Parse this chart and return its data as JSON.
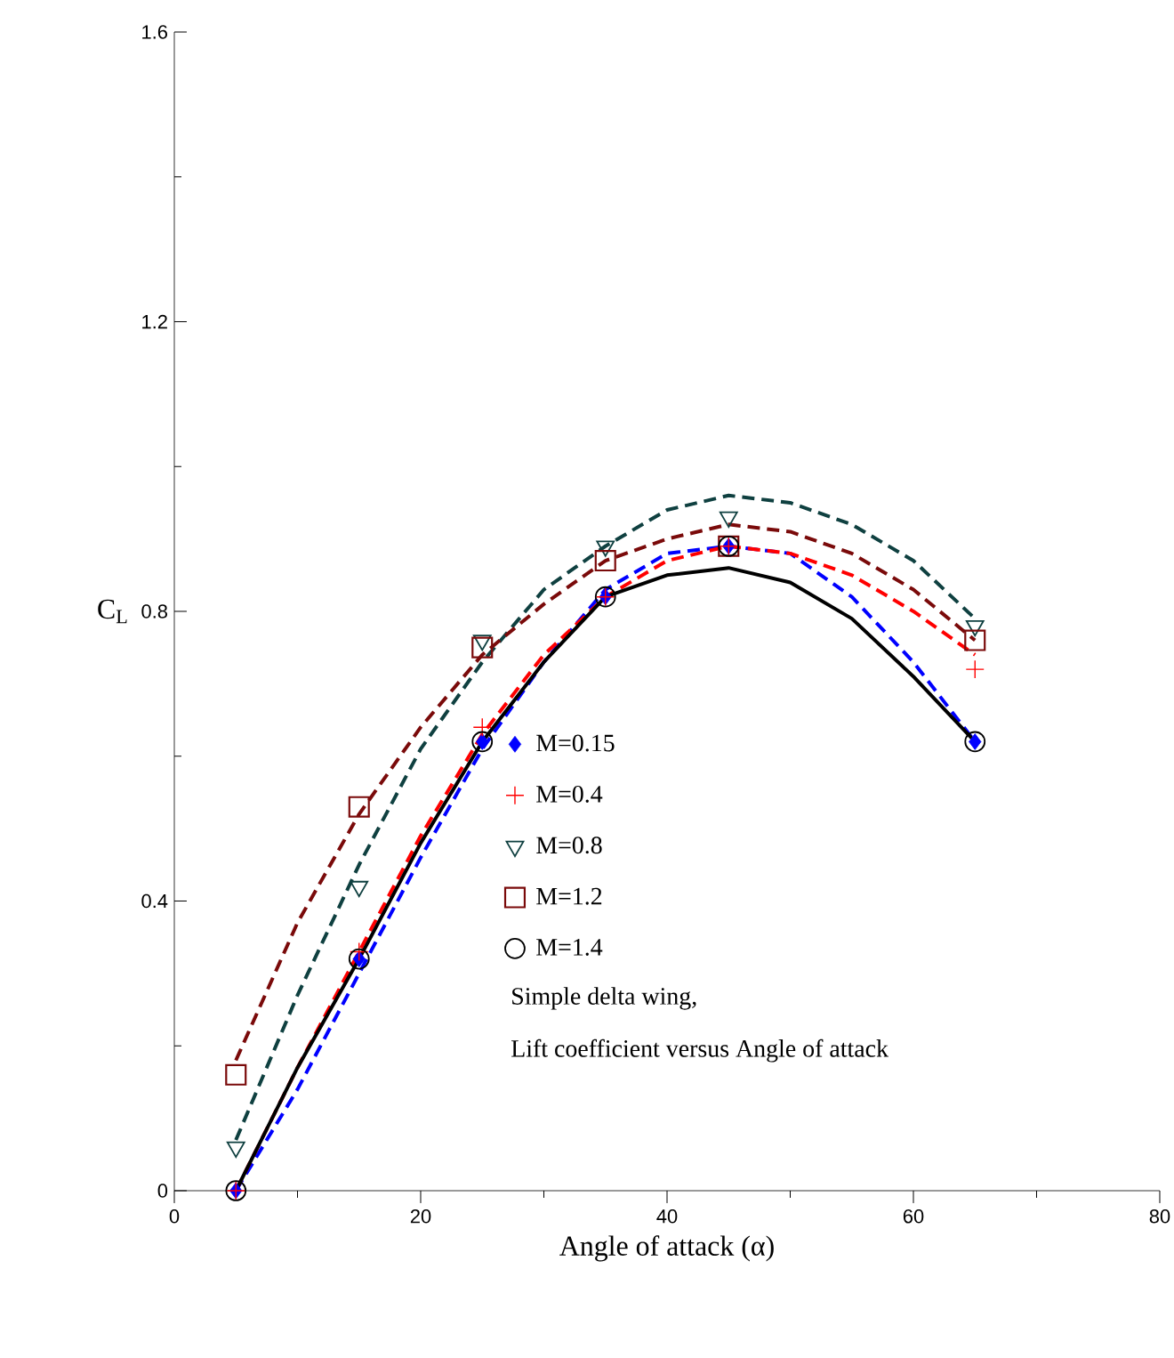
{
  "chart_data": {
    "type": "scatter",
    "xlabel": "Angle of attack (α)",
    "ylabel": "C$_{L}$",
    "xlim": [
      0,
      80
    ],
    "ylim": [
      0,
      1.6
    ],
    "xticks": [
      0,
      20,
      40,
      60,
      80
    ],
    "yticks": [
      0,
      0.4,
      0.8,
      1.2,
      1.6
    ],
    "legend": "center",
    "annotations": [
      "Simple delta wing,",
      "Lift coefficient versus Angle of attack"
    ],
    "series": [
      {
        "name": "M=0.15",
        "type": "scatter",
        "marker": "diamond",
        "color": "#0000ff",
        "x": [
          5,
          15,
          25,
          35,
          45,
          65
        ],
        "values": [
          0,
          0.32,
          0.62,
          0.82,
          0.89,
          0.62
        ]
      },
      {
        "name": "M=0.4",
        "type": "scatter",
        "marker": "cross",
        "color": "#ff0000",
        "x": [
          5,
          15,
          25,
          35,
          45,
          65
        ],
        "values": [
          0,
          0.33,
          0.64,
          0.82,
          0.89,
          0.72
        ]
      },
      {
        "name": "M=0.8",
        "type": "scatter",
        "marker": "triangle",
        "color": "#0f4040",
        "x": [
          5,
          15,
          25,
          35,
          45,
          65
        ],
        "values": [
          0.06,
          0.42,
          0.76,
          0.89,
          0.93,
          0.78
        ]
      },
      {
        "name": "M=1.2",
        "type": "scatter",
        "marker": "square",
        "color": "#7a0a0a",
        "x": [
          5,
          15,
          25,
          35,
          45,
          65
        ],
        "values": [
          0.16,
          0.53,
          0.75,
          0.87,
          0.89,
          0.76
        ]
      },
      {
        "name": "M=1.4",
        "type": "scatter",
        "marker": "circle",
        "color": "#000000",
        "x": [
          5,
          15,
          25,
          35,
          45,
          65
        ],
        "values": [
          0,
          0.32,
          0.62,
          0.82,
          0.89,
          0.62
        ]
      },
      {
        "type": "line",
        "line_style": "dashed",
        "color": "#0000ff",
        "x": [
          5,
          10,
          15,
          20,
          25,
          30,
          35,
          40,
          45,
          50,
          55,
          60,
          65
        ],
        "values": [
          0,
          0.14,
          0.3,
          0.46,
          0.61,
          0.73,
          0.83,
          0.88,
          0.89,
          0.88,
          0.82,
          0.73,
          0.62
        ]
      },
      {
        "type": "line",
        "line_style": "dashed",
        "color": "#ff0000",
        "x": [
          5,
          10,
          15,
          20,
          25,
          30,
          35,
          40,
          45,
          50,
          55,
          60,
          65
        ],
        "values": [
          0,
          0.17,
          0.33,
          0.49,
          0.63,
          0.74,
          0.82,
          0.87,
          0.89,
          0.88,
          0.85,
          0.8,
          0.74
        ]
      },
      {
        "type": "line",
        "line_style": "dashed",
        "color": "#0f4040",
        "x": [
          5,
          10,
          15,
          20,
          25,
          30,
          35,
          40,
          45,
          50,
          55,
          60,
          65
        ],
        "values": [
          0.07,
          0.27,
          0.45,
          0.61,
          0.73,
          0.83,
          0.89,
          0.94,
          0.96,
          0.95,
          0.92,
          0.87,
          0.79
        ]
      },
      {
        "type": "line",
        "line_style": "dashed",
        "color": "#7a0a0a",
        "x": [
          5,
          10,
          15,
          20,
          25,
          30,
          35,
          40,
          45,
          50,
          55,
          60,
          65
        ],
        "values": [
          0.18,
          0.37,
          0.52,
          0.64,
          0.74,
          0.81,
          0.87,
          0.9,
          0.92,
          0.91,
          0.88,
          0.83,
          0.76
        ]
      },
      {
        "type": "line",
        "line_style": "solid",
        "color": "#000000",
        "x": [
          5,
          10,
          15,
          20,
          25,
          30,
          35,
          40,
          45,
          50,
          55,
          60,
          65
        ],
        "values": [
          0,
          0.17,
          0.32,
          0.48,
          0.62,
          0.73,
          0.82,
          0.85,
          0.86,
          0.84,
          0.79,
          0.71,
          0.62
        ]
      }
    ]
  }
}
